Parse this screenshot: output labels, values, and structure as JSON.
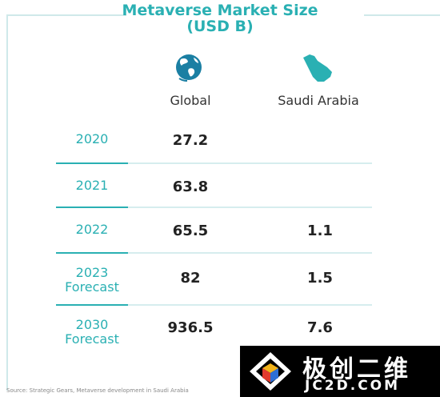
{
  "title_line1": "Metaverse Market Size",
  "title_line2": "(USD B)",
  "columns": {
    "global": "Global",
    "saudi": "Saudi Arabia"
  },
  "rows": [
    {
      "year": "2020",
      "sub": "",
      "global": "27.2",
      "saudi": ""
    },
    {
      "year": "2021",
      "sub": "",
      "global": "63.8",
      "saudi": ""
    },
    {
      "year": "2022",
      "sub": "",
      "global": "65.5",
      "saudi": "1.1"
    },
    {
      "year": "2023",
      "sub": "Forecast",
      "global": "82",
      "saudi": "1.5"
    },
    {
      "year": "2030",
      "sub": "Forecast",
      "global": "936.5",
      "saudi": "7.6"
    }
  ],
  "source": "Source: Strategic Gears, Metaverse development in Saudi Arabia",
  "watermark": {
    "main": "极创二维",
    "sub": "JC2D.COM"
  },
  "colors": {
    "accent": "#2ab0b3",
    "text": "#222222",
    "globe": "#1b7fa3",
    "saudi_map": "#2ab0b3"
  },
  "icons": {
    "global": "globe-icon",
    "saudi": "saudi-map-icon"
  },
  "chart_data": {
    "type": "table",
    "title": "Metaverse Market Size (USD B)",
    "columns": [
      "",
      "Global",
      "Saudi Arabia"
    ],
    "rows": [
      [
        "2020",
        27.2,
        null
      ],
      [
        "2021",
        63.8,
        null
      ],
      [
        "2022",
        65.5,
        1.1
      ],
      [
        "2023 Forecast",
        82,
        1.5
      ],
      [
        "2030 Forecast",
        936.5,
        7.6
      ]
    ]
  }
}
